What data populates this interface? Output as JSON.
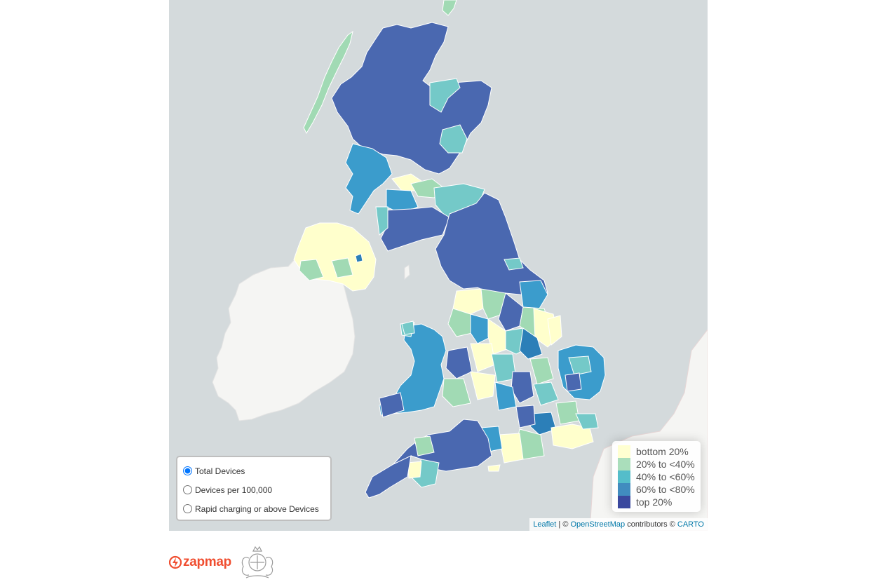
{
  "layer_control": {
    "options": [
      {
        "label": "Total Devices",
        "checked": true
      },
      {
        "label": "Devices per 100,000",
        "checked": false
      },
      {
        "label": "Rapid charging or above Devices",
        "checked": false
      }
    ]
  },
  "legend": {
    "items": [
      {
        "label": "bottom 20%",
        "color": "#ffffcc"
      },
      {
        "label": "20% to <40%",
        "color": "#a1dab4"
      },
      {
        "label": "40% to <60%",
        "color": "#41b6c4"
      },
      {
        "label": "60% to <80%",
        "color": "#2c7fb8"
      },
      {
        "label": "top 20%",
        "color": "#253494"
      }
    ]
  },
  "attribution": {
    "leaflet": "Leaflet",
    "sep": " | © ",
    "osm": "OpenStreetMap",
    "mid": " contributors © ",
    "carto": "CARTO"
  },
  "footer": {
    "brand": "zapmap",
    "brand_color": "#f04e30"
  },
  "colors": {
    "sea": "#d4dadc",
    "land": "#f2f2f0"
  }
}
